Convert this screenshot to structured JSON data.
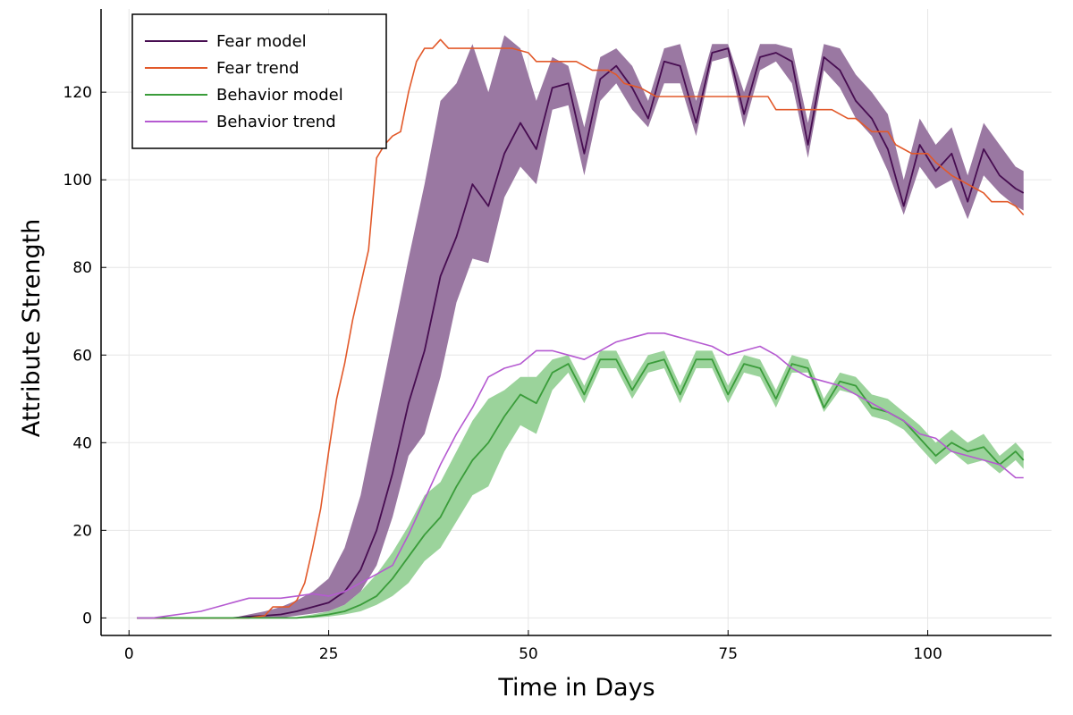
{
  "chart_data": {
    "type": "line",
    "title": "",
    "xlabel": "Time in Days",
    "ylabel": "Attribute Strength",
    "xlim": [
      -3.5,
      115.5
    ],
    "ylim": [
      -4,
      139
    ],
    "xticks": [
      0,
      25,
      50,
      75,
      100
    ],
    "yticks": [
      0,
      20,
      40,
      60,
      80,
      100,
      120
    ],
    "grid": true,
    "legend_position": "top-left",
    "series": [
      {
        "name": "Fear model",
        "color": "#470d51",
        "band_color": "#9a78a2",
        "x": [
          1,
          3,
          5,
          7,
          9,
          11,
          13,
          15,
          17,
          19,
          21,
          23,
          25,
          27,
          29,
          31,
          33,
          35,
          37,
          39,
          41,
          43,
          45,
          47,
          49,
          51,
          53,
          55,
          57,
          59,
          61,
          63,
          65,
          67,
          69,
          71,
          73,
          75,
          77,
          79,
          81,
          83,
          85,
          87,
          89,
          91,
          93,
          95,
          97,
          99,
          101,
          103,
          105,
          107,
          109,
          111,
          112
        ],
        "y": [
          0,
          0,
          0,
          0,
          0,
          0,
          0,
          0.3,
          0.5,
          0.8,
          1.5,
          2.5,
          3.5,
          6,
          11,
          20,
          33,
          49,
          61,
          78,
          87,
          99,
          94,
          106,
          113,
          107,
          121,
          122,
          106,
          123,
          126,
          121,
          114,
          127,
          126,
          113,
          129,
          130,
          115,
          128,
          129,
          127,
          108,
          128,
          125,
          118,
          114,
          107,
          94,
          108,
          102,
          106,
          95,
          107,
          101,
          98,
          97
        ],
        "band_lower": [
          0,
          0,
          0,
          0,
          0,
          0,
          0,
          0,
          0,
          0,
          0.5,
          1,
          1.5,
          3,
          6,
          12,
          23,
          37,
          42,
          55,
          72,
          82,
          81,
          96,
          103,
          99,
          116,
          117,
          101,
          118,
          122,
          116,
          112,
          122,
          122,
          110,
          127,
          128,
          112,
          125,
          127,
          122,
          105,
          125,
          121,
          114,
          110,
          102,
          92,
          103,
          98,
          100,
          91,
          101,
          97,
          94,
          93
        ],
        "band_upper": [
          0,
          0,
          0,
          0,
          0,
          0,
          0,
          0.8,
          1.5,
          2.5,
          4,
          6,
          9,
          16,
          28,
          46,
          64,
          82,
          99,
          118,
          122,
          131,
          120,
          133,
          130,
          118,
          128,
          126,
          112,
          128,
          130,
          126,
          118,
          130,
          131,
          118,
          131,
          131,
          120,
          131,
          131,
          130,
          113,
          131,
          130,
          124,
          120,
          115,
          100,
          114,
          108,
          112,
          101,
          113,
          108,
          103,
          102
        ]
      },
      {
        "name": "Fear trend",
        "color": "#e2592a",
        "x": [
          1,
          15,
          17,
          18,
          19,
          20,
          21,
          22,
          23,
          24,
          25,
          26,
          27,
          28,
          29,
          30,
          31,
          32,
          33,
          34,
          35,
          36,
          37,
          38,
          39,
          40,
          41,
          42,
          45,
          48,
          50,
          51,
          55,
          56,
          57,
          58,
          60,
          61,
          62,
          64,
          65,
          66,
          80,
          81,
          88,
          90,
          91,
          93,
          95,
          96,
          98,
          100,
          101,
          103,
          104,
          106,
          107,
          108,
          110,
          111,
          112
        ],
        "y": [
          0,
          0,
          0.5,
          2.5,
          2.5,
          2.5,
          4,
          8,
          16,
          25,
          38,
          50,
          58,
          68,
          76,
          84,
          105,
          108,
          110,
          111,
          120,
          127,
          130,
          130,
          132,
          130,
          130,
          130,
          130,
          130,
          129,
          127,
          127,
          127,
          126,
          125,
          125,
          124,
          122,
          121,
          120,
          119,
          119,
          116,
          116,
          114,
          114,
          111,
          111,
          108,
          106,
          106,
          104,
          101,
          100,
          98,
          97,
          95,
          95,
          94,
          92
        ]
      },
      {
        "name": "Behavior model",
        "color": "#3a9c3a",
        "band_color": "#9bd39b",
        "x": [
          1,
          3,
          5,
          7,
          9,
          11,
          13,
          15,
          17,
          19,
          21,
          23,
          25,
          27,
          29,
          31,
          33,
          35,
          37,
          39,
          41,
          43,
          45,
          47,
          49,
          51,
          53,
          55,
          57,
          59,
          61,
          63,
          65,
          67,
          69,
          71,
          73,
          75,
          77,
          79,
          81,
          83,
          85,
          87,
          89,
          91,
          93,
          95,
          97,
          99,
          101,
          103,
          105,
          107,
          109,
          111,
          112
        ],
        "y": [
          0,
          0,
          0,
          0,
          0,
          0,
          0,
          0,
          0,
          0,
          0,
          0.3,
          0.8,
          1.5,
          3,
          5,
          9,
          14,
          19,
          23,
          30,
          36,
          40,
          46,
          51,
          49,
          56,
          58,
          51,
          59,
          59,
          52,
          58,
          59,
          51,
          59,
          59,
          51,
          58,
          57,
          50,
          58,
          57,
          48,
          54,
          53,
          48,
          47,
          45,
          41,
          37,
          40,
          38,
          39,
          35,
          38,
          36
        ],
        "band_lower": [
          0,
          0,
          0,
          0,
          0,
          0,
          0,
          0,
          0,
          0,
          0,
          0,
          0.3,
          0.8,
          1.5,
          3,
          5,
          8,
          13,
          16,
          22,
          28,
          30,
          38,
          44,
          42,
          52,
          56,
          49,
          57,
          57,
          50,
          56,
          57,
          49,
          57,
          57,
          49,
          56,
          55,
          48,
          56,
          56,
          47,
          52,
          51,
          46,
          45,
          43,
          39,
          35,
          38,
          35,
          36,
          33,
          36,
          34
        ],
        "band_upper": [
          0,
          0,
          0,
          0,
          0,
          0,
          0,
          0,
          0,
          0,
          0.2,
          0.8,
          1.5,
          3,
          6,
          10,
          15,
          21,
          28,
          31,
          38,
          45,
          50,
          52,
          55,
          55,
          59,
          60,
          53,
          61,
          61,
          54,
          60,
          61,
          53,
          61,
          61,
          53,
          60,
          59,
          52,
          60,
          59,
          50,
          56,
          55,
          51,
          50,
          47,
          44,
          40,
          43,
          40,
          42,
          37,
          40,
          38
        ]
      },
      {
        "name": "Behavior trend",
        "color": "#b55ad1",
        "x": [
          1,
          3,
          5,
          7,
          9,
          11,
          13,
          15,
          17,
          19,
          21,
          23,
          25,
          27,
          29,
          31,
          33,
          35,
          37,
          39,
          41,
          43,
          45,
          47,
          49,
          51,
          53,
          55,
          57,
          59,
          61,
          63,
          65,
          67,
          69,
          71,
          73,
          75,
          77,
          79,
          81,
          83,
          85,
          87,
          89,
          91,
          93,
          95,
          97,
          99,
          101,
          103,
          105,
          107,
          109,
          111,
          112
        ],
        "y": [
          0,
          0,
          0.5,
          1,
          1.5,
          2.5,
          3.5,
          4.5,
          4.5,
          4.5,
          5,
          5.5,
          5,
          6,
          8,
          10,
          12,
          19,
          27,
          35,
          42,
          48,
          55,
          57,
          58,
          61,
          61,
          60,
          59,
          61,
          63,
          64,
          65,
          65,
          64,
          63,
          62,
          60,
          61,
          62,
          60,
          57,
          55,
          54,
          53,
          51,
          49,
          47,
          45,
          42,
          41,
          38,
          37,
          36,
          35,
          32,
          32
        ]
      }
    ]
  }
}
